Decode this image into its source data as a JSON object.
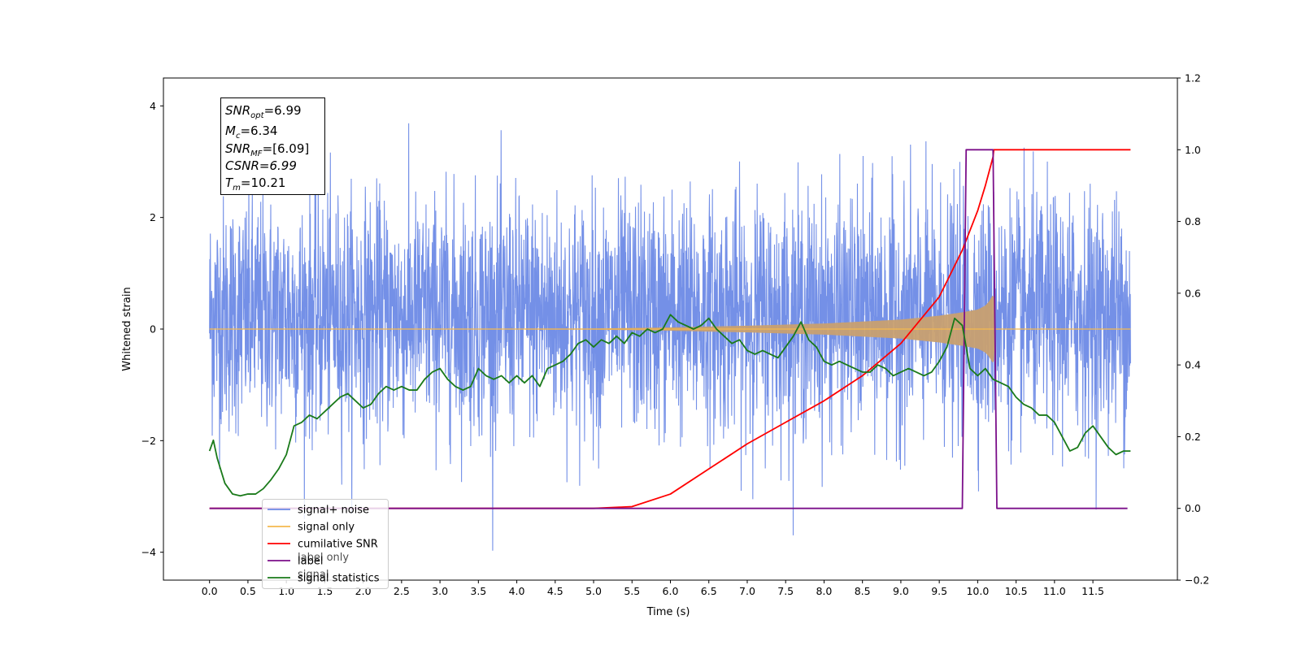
{
  "chart_data": {
    "type": "line",
    "xlabel": "Time (s)",
    "ylabel": "Whitened strain",
    "xlim": [
      -0.6,
      12.6
    ],
    "ylim": [
      -4.5,
      4.5
    ],
    "y2lim": [
      -0.2,
      1.2
    ],
    "x_ticks": [
      "0.0",
      "0.5",
      "1.0",
      "1.5",
      "2.0",
      "2.5",
      "3.0",
      "3.5",
      "4.0",
      "4.5",
      "5.0",
      "5.5",
      "6.0",
      "6.5",
      "7.0",
      "7.5",
      "8.0",
      "8.5",
      "9.0",
      "9.5",
      "10.0",
      "10.5",
      "11.0",
      "11.5"
    ],
    "y_ticks": [
      "4",
      "2",
      "0",
      "−2",
      "−4"
    ],
    "y2_ticks": [
      "1.2",
      "1.0",
      "0.8",
      "0.6",
      "0.4",
      "0.2",
      "0.0",
      "−0.2"
    ],
    "colors": {
      "noise": "#6d8ae6",
      "signal": "#f5b94e",
      "signal_fill": "#c8a070",
      "snr": "#ff0000",
      "label": "#7b0f8a",
      "stats": "#1a7a1a"
    },
    "annotation": {
      "snr_opt": "=6.99",
      "mc": "=6.34",
      "snr_mf": "=[6.09]",
      "csnr": "CSNR=6.99",
      "tm": "=10.21"
    },
    "legend": [
      {
        "text": "signal+ noise",
        "color": "#6d8ae6"
      },
      {
        "text": "signal only",
        "color": "#f5b94e"
      },
      {
        "text": "cumilative SNR",
        "color": "#ff0000"
      },
      {
        "text": "label",
        "color": "#7b0f8a"
      },
      {
        "text": "signal statistics",
        "color": "#1a7a1a"
      }
    ],
    "legend_hidden_texts": [
      "label only",
      "signal"
    ],
    "legend_placement": "lower-left",
    "series": [
      {
        "name": "signal+ noise",
        "axis": "left",
        "description": "white-noise-like trace spanning roughly -2.7 to +3.2, extreme values near -4.1 and +4.1",
        "x_range": [
          0.0,
          11.99
        ],
        "typical_range": [
          -2.7,
          3.2
        ]
      },
      {
        "name": "signal only",
        "axis": "left",
        "chirp_envelope": {
          "x": [
            0.0,
            5.0,
            6.0,
            7.0,
            8.0,
            9.0,
            9.5,
            9.8,
            10.0,
            10.1,
            10.15,
            10.2,
            10.21,
            10.22,
            11.99
          ],
          "amplitude": [
            0.0,
            0.01,
            0.03,
            0.06,
            0.1,
            0.17,
            0.24,
            0.3,
            0.35,
            0.42,
            0.5,
            0.62,
            0.68,
            0.0,
            0.0
          ]
        }
      },
      {
        "name": "cumilative SNR",
        "axis": "right",
        "x": [
          0.0,
          5.0,
          5.5,
          6.0,
          6.5,
          7.0,
          7.5,
          8.0,
          8.5,
          9.0,
          9.5,
          9.8,
          10.0,
          10.1,
          10.2,
          10.21,
          10.5,
          11.0,
          11.99
        ],
        "y": [
          0.0,
          0.0,
          0.005,
          0.04,
          0.11,
          0.18,
          0.24,
          0.3,
          0.37,
          0.46,
          0.59,
          0.72,
          0.83,
          0.9,
          0.98,
          1.0,
          1.0,
          1.0,
          1.0
        ]
      },
      {
        "name": "label",
        "axis": "right",
        "x": [
          0.0,
          9.8,
          9.85,
          10.2,
          10.25,
          11.95
        ],
        "y": [
          0.0,
          0.0,
          1.0,
          1.0,
          0.0,
          0.0
        ]
      },
      {
        "name": "signal statistics",
        "axis": "right",
        "x": [
          0.0,
          0.05,
          0.1,
          0.2,
          0.3,
          0.4,
          0.5,
          0.6,
          0.7,
          0.8,
          0.9,
          1.0,
          1.1,
          1.2,
          1.3,
          1.4,
          1.5,
          1.6,
          1.7,
          1.8,
          1.9,
          2.0,
          2.1,
          2.2,
          2.3,
          2.4,
          2.5,
          2.6,
          2.7,
          2.8,
          2.9,
          3.0,
          3.1,
          3.2,
          3.3,
          3.4,
          3.5,
          3.6,
          3.7,
          3.8,
          3.9,
          4.0,
          4.1,
          4.2,
          4.3,
          4.4,
          4.5,
          4.6,
          4.7,
          4.8,
          4.9,
          5.0,
          5.1,
          5.2,
          5.3,
          5.4,
          5.5,
          5.6,
          5.7,
          5.8,
          5.9,
          6.0,
          6.1,
          6.2,
          6.3,
          6.4,
          6.5,
          6.6,
          6.7,
          6.8,
          6.9,
          7.0,
          7.1,
          7.2,
          7.3,
          7.4,
          7.5,
          7.6,
          7.7,
          7.8,
          7.9,
          8.0,
          8.1,
          8.2,
          8.3,
          8.4,
          8.5,
          8.6,
          8.7,
          8.8,
          8.9,
          9.0,
          9.1,
          9.2,
          9.3,
          9.4,
          9.5,
          9.6,
          9.7,
          9.8,
          9.9,
          10.0,
          10.1,
          10.2,
          10.3,
          10.4,
          10.5,
          10.6,
          10.7,
          10.8,
          10.9,
          11.0,
          11.1,
          11.2,
          11.3,
          11.4,
          11.5,
          11.6,
          11.7,
          11.8,
          11.9,
          11.99
        ],
        "y": [
          0.16,
          0.19,
          0.14,
          0.07,
          0.04,
          0.035,
          0.04,
          0.04,
          0.055,
          0.08,
          0.11,
          0.15,
          0.23,
          0.24,
          0.26,
          0.25,
          0.27,
          0.29,
          0.31,
          0.32,
          0.3,
          0.28,
          0.29,
          0.32,
          0.34,
          0.33,
          0.34,
          0.33,
          0.33,
          0.36,
          0.38,
          0.39,
          0.36,
          0.34,
          0.33,
          0.34,
          0.39,
          0.37,
          0.36,
          0.37,
          0.35,
          0.37,
          0.35,
          0.37,
          0.34,
          0.39,
          0.4,
          0.41,
          0.43,
          0.46,
          0.47,
          0.45,
          0.47,
          0.46,
          0.48,
          0.46,
          0.49,
          0.48,
          0.5,
          0.49,
          0.5,
          0.54,
          0.52,
          0.51,
          0.5,
          0.51,
          0.53,
          0.5,
          0.48,
          0.46,
          0.47,
          0.44,
          0.43,
          0.44,
          0.43,
          0.42,
          0.45,
          0.48,
          0.52,
          0.47,
          0.45,
          0.41,
          0.4,
          0.41,
          0.4,
          0.39,
          0.38,
          0.38,
          0.4,
          0.39,
          0.37,
          0.38,
          0.39,
          0.38,
          0.37,
          0.38,
          0.41,
          0.45,
          0.53,
          0.51,
          0.39,
          0.37,
          0.39,
          0.36,
          0.35,
          0.34,
          0.31,
          0.29,
          0.28,
          0.26,
          0.26,
          0.24,
          0.2,
          0.16,
          0.17,
          0.21,
          0.23,
          0.2,
          0.17,
          0.15,
          0.16,
          0.16
        ]
      }
    ]
  }
}
